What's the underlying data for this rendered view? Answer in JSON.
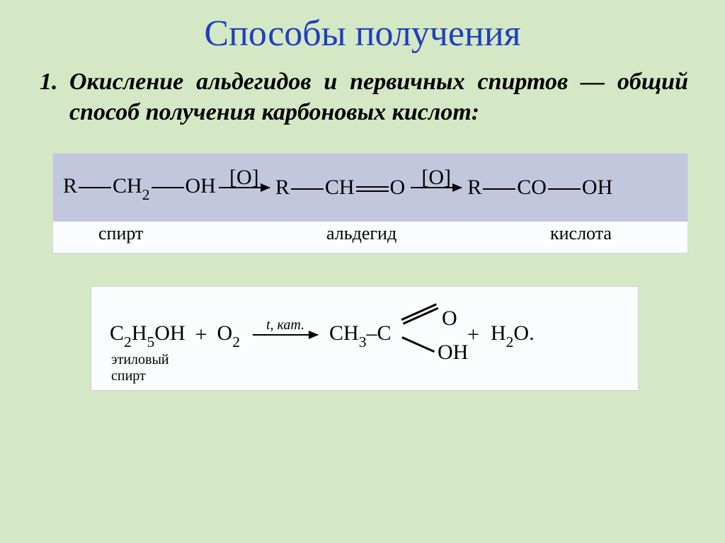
{
  "title": {
    "text": "Способы получения",
    "color": "#1f3fbf",
    "fontsize": 52
  },
  "body": {
    "number": "1.",
    "text": "Окисление альдегидов и первичных спиртов — общий способ получения карбоновых кислот:",
    "color": "#000000",
    "fontsize": 34
  },
  "diagram1": {
    "background": "#c3c7de",
    "labels_background": "#fbfcfd",
    "text_color": "#000000",
    "fontsize": 30,
    "label_fontsize": 26,
    "species": [
      {
        "formula_parts": [
          "R",
          "—",
          "CH",
          "sub2",
          "—",
          "OH"
        ],
        "label": "спирт",
        "label_offset": 64
      },
      {
        "formula_parts": [
          "R",
          "—",
          "CH",
          "=",
          "O"
        ],
        "label": "альдегид",
        "label_offset": 386
      },
      {
        "formula_parts": [
          "R",
          "—",
          "CO",
          "—",
          "OH"
        ],
        "label": "кислота",
        "label_offset": 702
      }
    ],
    "arrow_label": "[O]",
    "bond_width": 46,
    "arrow_width": 72
  },
  "diagram2": {
    "background": "#fbfcfd",
    "text_color": "#000000",
    "fontsize": 30,
    "reactant1": "C₂H₅OH",
    "reactant1_label": "этиловый\nспирт",
    "plus": "+",
    "reactant2": "O₂",
    "arrow_label": "t, кат.",
    "arrow_label_fontsize": 20,
    "product_prefix": "CH₃–C",
    "product_o": "O",
    "product_oh": "OH",
    "plus2": "+",
    "product2": "H₂O.",
    "label_fontsize": 20,
    "arrow_width": 92
  }
}
